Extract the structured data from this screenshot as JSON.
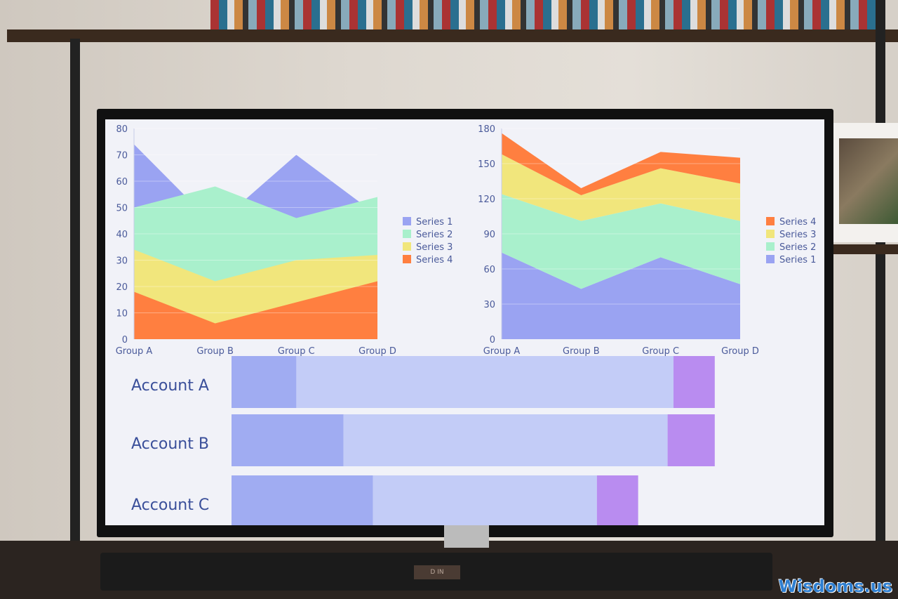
{
  "watermark": "Wisdoms.us",
  "soundbar_display": "D IN",
  "colors": {
    "series_1": "#9aa3f2",
    "series_2": "#a9f0cc",
    "series_3": "#f1e67c",
    "series_4": "#ff7f40",
    "bar_segment_1": "#a0acf2",
    "bar_segment_2": "#c3ccf7",
    "bar_segment_3": "#b98cf0",
    "axis_text": "#4a5a9a"
  },
  "chart_data": [
    {
      "type": "area",
      "stacked": false,
      "categories": [
        "Group A",
        "Group B",
        "Group C",
        "Group D"
      ],
      "ylim": [
        0,
        80
      ],
      "yticks": [
        0,
        10,
        20,
        30,
        40,
        50,
        60,
        70,
        80
      ],
      "grid": true,
      "legend_position": "right",
      "series": [
        {
          "name": "Series 1",
          "values": [
            74,
            43,
            70,
            47
          ]
        },
        {
          "name": "Series 2",
          "values": [
            50,
            58,
            46,
            54
          ]
        },
        {
          "name": "Series 3",
          "values": [
            34,
            22,
            30,
            32
          ]
        },
        {
          "name": "Series 4",
          "values": [
            18,
            6,
            14,
            22
          ]
        }
      ],
      "legend": [
        "Series 1",
        "Series 2",
        "Series 3",
        "Series 4"
      ]
    },
    {
      "type": "area",
      "stacked": true,
      "categories": [
        "Group A",
        "Group B",
        "Group C",
        "Group D"
      ],
      "ylim": [
        0,
        180
      ],
      "yticks": [
        0,
        30,
        60,
        90,
        120,
        150,
        180
      ],
      "grid": true,
      "legend_position": "right",
      "series": [
        {
          "name": "Series 1",
          "values": [
            74,
            43,
            70,
            47
          ]
        },
        {
          "name": "Series 2",
          "values": [
            50,
            58,
            46,
            54
          ]
        },
        {
          "name": "Series 3",
          "values": [
            34,
            22,
            30,
            32
          ]
        },
        {
          "name": "Series 4",
          "values": [
            18,
            6,
            14,
            22
          ]
        }
      ],
      "legend": [
        "Series 4",
        "Series 3",
        "Series 2",
        "Series 1"
      ]
    },
    {
      "type": "bar",
      "orientation": "horizontal",
      "stacked": true,
      "categories": [
        "Account A",
        "Account B",
        "Account C"
      ],
      "series": [
        {
          "values": [
            11,
            19,
            24
          ]
        },
        {
          "values": [
            64,
            55,
            38
          ]
        },
        {
          "values": [
            7,
            8,
            7
          ]
        }
      ]
    }
  ]
}
